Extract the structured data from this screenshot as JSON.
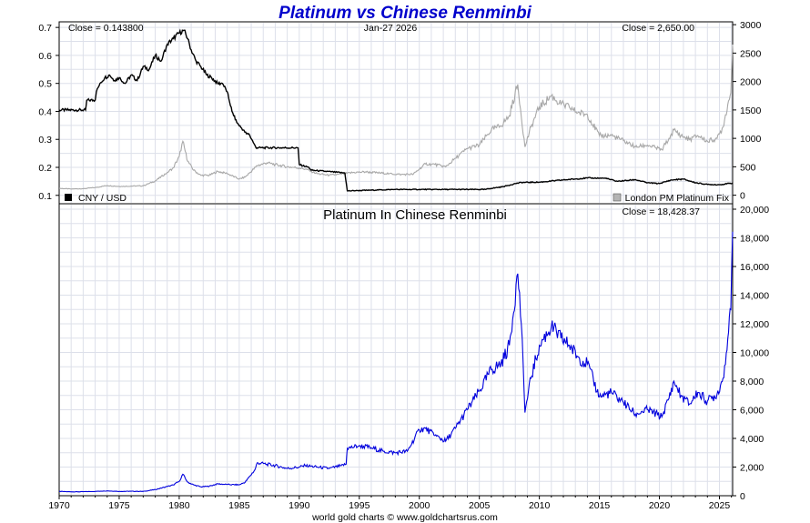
{
  "title": "Platinum vs Chinese Renminbi",
  "date_label": "Jan-27  2026",
  "footer": "world gold charts © www.goldchartsrus.com",
  "colors": {
    "title": "#0000cc",
    "cny": "#000000",
    "platinum": "#a8a8a8",
    "renminbi_price": "#0000dd",
    "grid": "#dde0ea"
  },
  "chart_data": [
    {
      "type": "line",
      "title": "Platinum vs Chinese Renminbi",
      "x_range": [
        1970,
        2026.1
      ],
      "x_ticks": [
        1970,
        1975,
        1980,
        1985,
        1990,
        1995,
        2000,
        2005,
        2010,
        2015,
        2020,
        2025
      ],
      "x_tick_labels": [
        "1970",
        "1975",
        "1980",
        "1985",
        "1990",
        "1995",
        "2000",
        "2005",
        "2010",
        "2015",
        "2020",
        "2025"
      ],
      "left_axis": {
        "ylim": [
          0.07,
          0.72
        ],
        "ticks": [
          0.1,
          0.2,
          0.3,
          0.4,
          0.5,
          0.6,
          0.7
        ],
        "tick_labels": [
          "0.1",
          "0.2",
          "0.3",
          "0.4",
          "0.5",
          "0.6",
          "0.7"
        ]
      },
      "right_axis": {
        "ylim": [
          -150,
          3050
        ],
        "ticks": [
          0,
          500,
          1000,
          1500,
          2000,
          2500,
          3000
        ],
        "tick_labels": [
          "0",
          "500",
          "1000",
          "1500",
          "2000",
          "2500",
          "3000"
        ]
      },
      "close_left": "Close = 0.143800",
      "close_right": "Close = 2,650.00",
      "legend_left": "CNY / USD",
      "legend_right": "London PM Platinum Fix",
      "series": [
        {
          "name": "CNY / USD",
          "axis": "left",
          "x": [
            1970,
            1972.2,
            1972.3,
            1973.0,
            1973.1,
            1973.4,
            1973.8,
            1974.2,
            1974.6,
            1975.0,
            1975.5,
            1976.0,
            1976.5,
            1977.0,
            1977.5,
            1978.0,
            1978.5,
            1979.0,
            1979.5,
            1980.0,
            1980.4,
            1980.7,
            1981.0,
            1981.4,
            1981.8,
            1982.3,
            1982.7,
            1983.2,
            1983.6,
            1984.0,
            1984.4,
            1984.8,
            1985.2,
            1985.6,
            1985.8,
            1986.4,
            1986.5,
            1989.9,
            1990.0,
            1990.8,
            1991.0,
            1993.8,
            1994.0,
            1998,
            2005.5,
            2006,
            2007,
            2008,
            2008.5,
            2010,
            2012,
            2014,
            2015.5,
            2016.5,
            2018,
            2019,
            2020,
            2021,
            2022,
            2023,
            2024,
            2025,
            2026.1
          ],
          "values": [
            0.405,
            0.405,
            0.44,
            0.44,
            0.47,
            0.5,
            0.52,
            0.53,
            0.51,
            0.52,
            0.5,
            0.53,
            0.51,
            0.56,
            0.55,
            0.6,
            0.58,
            0.64,
            0.66,
            0.68,
            0.69,
            0.66,
            0.62,
            0.58,
            0.56,
            0.53,
            0.52,
            0.5,
            0.5,
            0.47,
            0.4,
            0.36,
            0.34,
            0.32,
            0.32,
            0.27,
            0.27,
            0.27,
            0.21,
            0.2,
            0.19,
            0.18,
            0.116,
            0.121,
            0.121,
            0.125,
            0.131,
            0.142,
            0.146,
            0.147,
            0.155,
            0.162,
            0.161,
            0.15,
            0.156,
            0.145,
            0.142,
            0.155,
            0.158,
            0.145,
            0.139,
            0.138,
            0.1438
          ]
        },
        {
          "name": "London PM Platinum Fix",
          "axis": "right",
          "x": [
            1970,
            1971,
            1972,
            1973,
            1974,
            1975,
            1976,
            1977,
            1978,
            1979,
            1979.5,
            1980.0,
            1980.3,
            1980.7,
            1981.2,
            1981.8,
            1982.5,
            1983.2,
            1984,
            1985,
            1985.5,
            1986.5,
            1987.3,
            1988,
            1989,
            1990,
            1990.5,
            1991.5,
            1992.5,
            1993.5,
            1994.5,
            1995.5,
            1996.5,
            1997.5,
            1998.5,
            1999.5,
            2000.5,
            2001.3,
            2002.2,
            2003,
            2004,
            2005,
            2006,
            2006.8,
            2007.5,
            2008.2,
            2008.8,
            2009.3,
            2010,
            2011.0,
            2011.8,
            2012.5,
            2013.2,
            2014,
            2015,
            2016,
            2017,
            2018,
            2019,
            2020.2,
            2020.8,
            2021.2,
            2021.8,
            2022.5,
            2023.2,
            2024,
            2024.8,
            2025.3,
            2025.7,
            2025.95,
            2026.1
          ],
          "values": [
            120,
            110,
            115,
            135,
            170,
            155,
            160,
            165,
            250,
            400,
            480,
            680,
            950,
            600,
            440,
            350,
            350,
            420,
            380,
            285,
            320,
            520,
            570,
            540,
            500,
            480,
            460,
            380,
            350,
            370,
            400,
            410,
            395,
            380,
            365,
            370,
            550,
            540,
            500,
            650,
            820,
            880,
            1150,
            1220,
            1400,
            1950,
            850,
            1200,
            1550,
            1750,
            1600,
            1550,
            1450,
            1420,
            1050,
            1050,
            960,
            850,
            880,
            800,
            1000,
            1150,
            1050,
            980,
            1050,
            950,
            1000,
            1200,
            1600,
            1800,
            2650
          ]
        }
      ]
    },
    {
      "type": "line",
      "title": "Platinum In Chinese Renminbi",
      "x_range": [
        1970,
        2026.1
      ],
      "x_ticks": [
        1970,
        1975,
        1980,
        1985,
        1990,
        1995,
        2000,
        2005,
        2010,
        2015,
        2020,
        2025
      ],
      "x_tick_labels": [
        "1970",
        "1975",
        "1980",
        "1985",
        "1990",
        "1995",
        "2000",
        "2005",
        "2010",
        "2015",
        "2020",
        "2025"
      ],
      "right_axis": {
        "ylim": [
          0,
          20000
        ],
        "ticks": [
          0,
          2000,
          4000,
          6000,
          8000,
          10000,
          12000,
          14000,
          16000,
          18000,
          20000
        ],
        "tick_labels": [
          "0",
          "2,000",
          "4,000",
          "6,000",
          "8,000",
          "10,000",
          "12,000",
          "14,000",
          "16,000",
          "18,000",
          "20,000"
        ]
      },
      "close": "Close = 18,428.37",
      "series": [
        {
          "name": "Platinum In Chinese Renminbi",
          "axis": "right",
          "x": [
            1970,
            1971,
            1972,
            1973,
            1974,
            1975,
            1976,
            1977,
            1978,
            1979,
            1979.5,
            1980.0,
            1980.3,
            1980.7,
            1981.2,
            1981.8,
            1982.5,
            1983.2,
            1984,
            1985,
            1985.5,
            1986.3,
            1986.5,
            1987.3,
            1988,
            1989,
            1990,
            1990.5,
            1991.5,
            1992.5,
            1993.5,
            1993.9,
            1994.0,
            1995,
            1996,
            1997,
            1998,
            1999,
            2000,
            2000.5,
            2001.3,
            2002.2,
            2003,
            2004,
            2005,
            2006,
            2006.8,
            2007.5,
            2008.2,
            2008.5,
            2008.8,
            2009.3,
            2010,
            2011.0,
            2011.8,
            2012.5,
            2013.2,
            2014,
            2015,
            2016,
            2017,
            2018,
            2019,
            2020.2,
            2020.8,
            2021.2,
            2021.8,
            2022.5,
            2023.2,
            2024,
            2024.8,
            2025.3,
            2025.7,
            2025.95,
            2026.1
          ],
          "values": [
            300,
            270,
            280,
            300,
            340,
            300,
            310,
            300,
            430,
            640,
            750,
            1000,
            1500,
            950,
            760,
            620,
            660,
            830,
            780,
            760,
            950,
            1800,
            2300,
            2200,
            2100,
            1900,
            2000,
            2100,
            2000,
            1900,
            2100,
            2200,
            3300,
            3500,
            3350,
            3100,
            3000,
            3100,
            4600,
            4700,
            4200,
            3800,
            4700,
            6000,
            7300,
            8800,
            9200,
            10500,
            15500,
            12000,
            5800,
            8200,
            10500,
            11800,
            11000,
            10500,
            9700,
            9200,
            6900,
            7200,
            6500,
            5700,
            6000,
            5500,
            6800,
            8000,
            7000,
            6400,
            7200,
            6600,
            7100,
            8200,
            11000,
            13000,
            18428
          ]
        }
      ]
    }
  ]
}
